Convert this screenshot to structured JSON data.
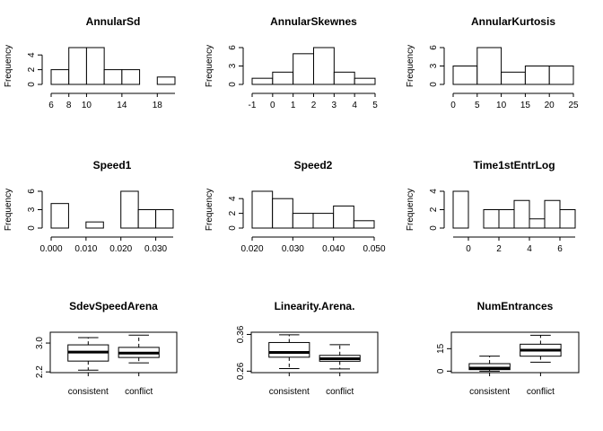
{
  "chart_data": [
    {
      "type": "bar",
      "title": "AnnularSd",
      "xlabel": "",
      "ylabel": "Frequency",
      "bin_edges": [
        6,
        8,
        10,
        12,
        14,
        16,
        18,
        20
      ],
      "values": [
        2,
        5,
        5,
        2,
        2,
        0,
        1
      ],
      "xlim": [
        6,
        20
      ],
      "ylim": [
        0,
        5
      ],
      "x_ticks": [
        6,
        8,
        10,
        14,
        18
      ],
      "y_ticks": [
        0,
        2,
        4
      ]
    },
    {
      "type": "bar",
      "title": "AnnularSkewnes",
      "xlabel": "",
      "ylabel": "Frequency",
      "bin_edges": [
        -1,
        0,
        1,
        2,
        3,
        4,
        5
      ],
      "values": [
        1,
        2,
        5,
        6,
        2,
        1
      ],
      "xlim": [
        -1,
        5
      ],
      "ylim": [
        0,
        6
      ],
      "x_ticks": [
        -1,
        0,
        1,
        2,
        3,
        4,
        5
      ],
      "y_ticks": [
        0,
        3,
        6
      ]
    },
    {
      "type": "bar",
      "title": "AnnularKurtosis",
      "xlabel": "",
      "ylabel": "Frequency",
      "bin_edges": [
        0,
        5,
        10,
        15,
        20,
        25
      ],
      "values": [
        3,
        6,
        2,
        3,
        3
      ],
      "xlim": [
        0,
        25
      ],
      "ylim": [
        0,
        6
      ],
      "x_ticks": [
        0,
        5,
        10,
        15,
        20,
        25
      ],
      "y_ticks": [
        0,
        3,
        6
      ]
    },
    {
      "type": "bar",
      "title": "Speed1",
      "xlabel": "",
      "ylabel": "Frequency",
      "bin_edges": [
        0.0,
        0.005,
        0.01,
        0.015,
        0.02,
        0.025,
        0.03,
        0.035
      ],
      "values": [
        4,
        0,
        1,
        0,
        6,
        3,
        3
      ],
      "xlim": [
        0.0,
        0.035
      ],
      "ylim": [
        0,
        6
      ],
      "x_ticks": [
        0.0,
        0.01,
        0.02,
        0.03
      ],
      "x_tick_labels": [
        "0.000",
        "0.010",
        "0.020",
        "0.030"
      ],
      "y_ticks": [
        0,
        3,
        6
      ]
    },
    {
      "type": "bar",
      "title": "Speed2",
      "xlabel": "",
      "ylabel": "Frequency",
      "bin_edges": [
        0.02,
        0.025,
        0.03,
        0.035,
        0.04,
        0.045,
        0.05
      ],
      "values": [
        5,
        4,
        2,
        2,
        3,
        1
      ],
      "xlim": [
        0.02,
        0.05
      ],
      "ylim": [
        0,
        5
      ],
      "x_ticks": [
        0.02,
        0.03,
        0.04,
        0.05
      ],
      "x_tick_labels": [
        "0.020",
        "0.030",
        "0.040",
        "0.050"
      ],
      "y_ticks": [
        0,
        2,
        4
      ]
    },
    {
      "type": "bar",
      "title": "Time1stEntrLog",
      "xlabel": "",
      "ylabel": "Frequency",
      "bin_edges": [
        -1,
        0,
        1,
        2,
        3,
        4,
        5,
        6,
        7
      ],
      "values": [
        4,
        0,
        2,
        2,
        3,
        1,
        3,
        2
      ],
      "xlim": [
        -1,
        7
      ],
      "ylim": [
        0,
        4
      ],
      "x_ticks": [
        0,
        2,
        4,
        6
      ],
      "y_ticks": [
        0,
        2,
        4
      ]
    },
    {
      "type": "boxplot",
      "title": "SdevSpeedArena",
      "xlabel": "",
      "ylabel": "",
      "categories": [
        "consistent",
        "conflict"
      ],
      "boxes": [
        {
          "min": 2.25,
          "q1": 2.5,
          "median": 2.75,
          "q3": 2.95,
          "max": 3.15
        },
        {
          "min": 2.45,
          "q1": 2.6,
          "median": 2.72,
          "q3": 2.88,
          "max": 3.22
        }
      ],
      "ylim": [
        2.18,
        3.3
      ],
      "y_ticks": [
        2.2,
        3.0
      ],
      "y_tick_labels": [
        "2.2",
        "3.0"
      ]
    },
    {
      "type": "boxplot",
      "title": "Linearity.Arena.",
      "xlabel": "",
      "ylabel": "",
      "categories": [
        "consistent",
        "conflict"
      ],
      "boxes": [
        {
          "min": 0.267,
          "q1": 0.298,
          "median": 0.311,
          "q3": 0.338,
          "max": 0.359
        },
        {
          "min": 0.266,
          "q1": 0.287,
          "median": 0.294,
          "q3": 0.303,
          "max": 0.332
        }
      ],
      "ylim": [
        0.256,
        0.366
      ],
      "y_ticks": [
        0.26,
        0.36
      ],
      "y_tick_labels": [
        "0.26",
        "0.36"
      ]
    },
    {
      "type": "boxplot",
      "title": "NumEntrances",
      "xlabel": "",
      "ylabel": "",
      "categories": [
        "consistent",
        "conflict"
      ],
      "boxes": [
        {
          "min": 0,
          "q1": 1,
          "median": 2,
          "q3": 5,
          "max": 10
        },
        {
          "min": 6,
          "q1": 10,
          "median": 14,
          "q3": 18,
          "max": 24
        }
      ],
      "ylim": [
        -1,
        26
      ],
      "y_ticks": [
        0,
        15
      ],
      "y_tick_labels": [
        "0",
        "15"
      ]
    }
  ]
}
